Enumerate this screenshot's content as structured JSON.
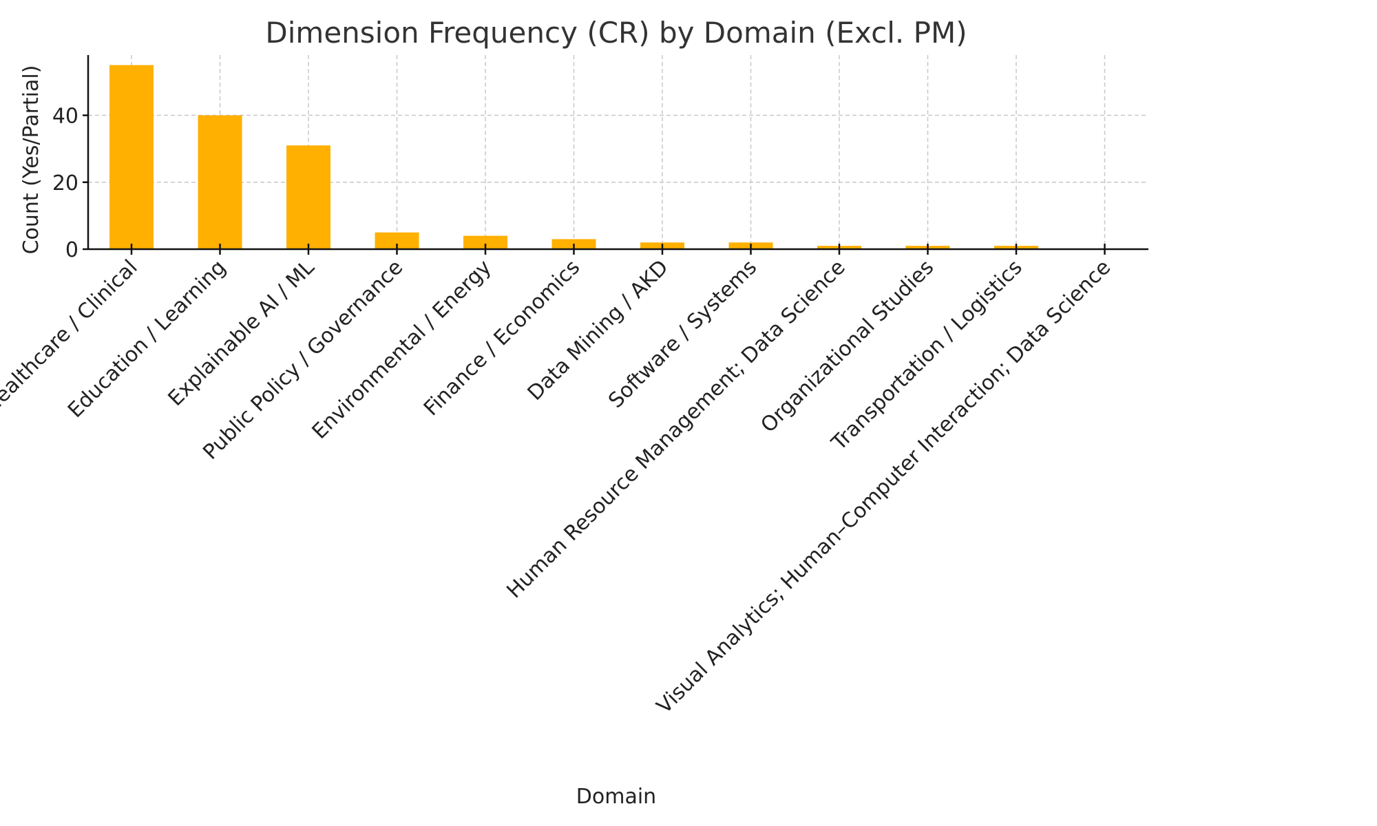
{
  "chart_data": {
    "type": "bar",
    "title": "Dimension Frequency (CR) by Domain (Excl. PM)",
    "xlabel": "Domain",
    "ylabel": "Count (Yes/Partial)",
    "categories": [
      "Healthcare / Clinical",
      "Education / Learning",
      "Explainable AI / ML",
      "Public Policy / Governance",
      "Environmental / Energy",
      "Finance / Economics",
      "Data Mining / AKD",
      "Software / Systems",
      "Human Resource Management; Data Science",
      "Organizational Studies",
      "Transportation / Logistics",
      "Visual Analytics; Human–Computer Interaction; Data Science"
    ],
    "values": [
      55,
      40,
      31,
      5,
      4,
      3,
      2,
      2,
      1,
      1,
      1,
      0
    ],
    "yticks": [
      0,
      20,
      40
    ],
    "ylim": [
      0,
      58
    ],
    "grid": true,
    "bar_color": "#FFB000",
    "legend": "none"
  }
}
